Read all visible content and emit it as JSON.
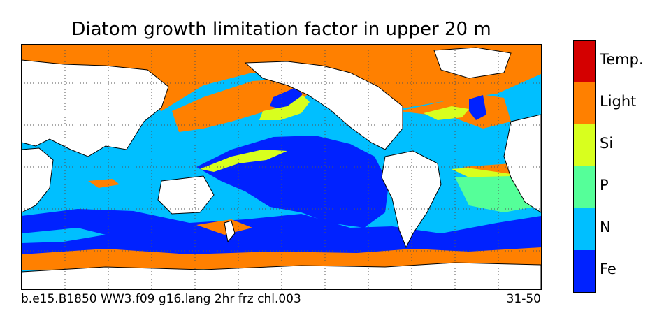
{
  "title": "Diatom growth limitation factor in upper 20 m",
  "footer": {
    "run_id": "b.e15.B1850 WW3.f09 g16.lang 2hr frz chl.003",
    "years": "31-50"
  },
  "legend": {
    "items": [
      {
        "label": "Temp.",
        "color": "#d40000"
      },
      {
        "label": "Light",
        "color": "#ff8000"
      },
      {
        "label": "Si",
        "color": "#d8ff1e"
      },
      {
        "label": "P",
        "color": "#55ff99"
      },
      {
        "label": "N",
        "color": "#00bfff"
      },
      {
        "label": "Fe",
        "color": "#0022ff"
      }
    ]
  },
  "map": {
    "land_color": "#ffffff",
    "coastline_color": "#000000",
    "gridlines": "dotted",
    "projection": "Pacific-centred equirectangular"
  }
}
